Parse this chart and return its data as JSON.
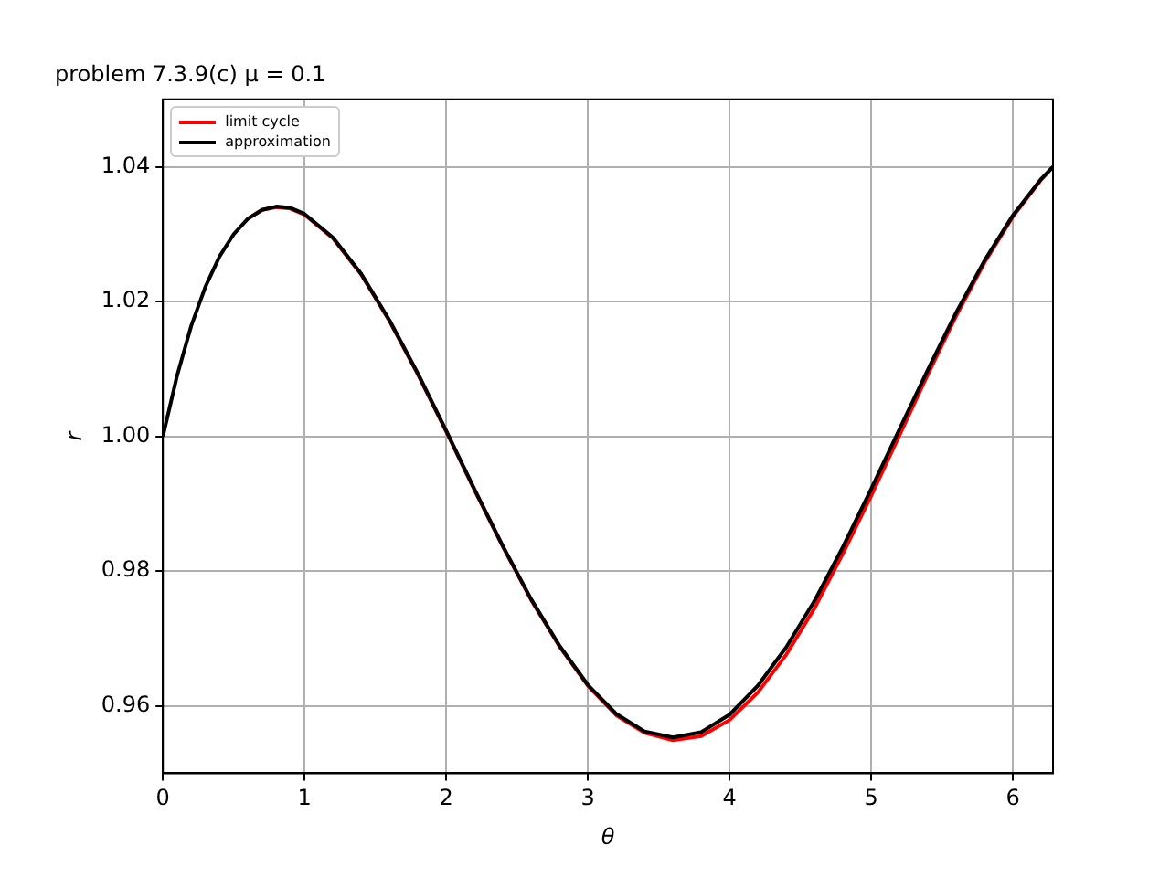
{
  "chart_data": {
    "type": "line",
    "title": "problem 7.3.9(c) μ = 0.1",
    "xlabel": "θ",
    "ylabel": "r",
    "x": [
      0,
      0.1,
      0.2,
      0.3,
      0.4,
      0.5,
      0.6,
      0.7,
      0.8,
      0.9,
      1.0,
      1.2,
      1.4,
      1.6,
      1.8,
      2.0,
      2.2,
      2.4,
      2.6,
      2.8,
      3.0,
      3.2,
      3.4,
      3.6,
      3.8,
      4.0,
      4.2,
      4.4,
      4.6,
      4.8,
      5.0,
      5.2,
      5.4,
      5.6,
      5.8,
      6.0,
      6.2,
      6.283
    ],
    "series": [
      {
        "name": "limit cycle",
        "color": "#ff0000",
        "values": [
          null,
          null,
          null,
          null,
          null,
          null,
          1.0323,
          1.0336,
          1.034,
          1.0338,
          1.0329,
          1.0294,
          1.024,
          1.0171,
          1.0092,
          1.0007,
          0.992,
          0.9836,
          0.9757,
          0.9688,
          0.963,
          0.9586,
          0.956,
          0.9549,
          0.9555,
          0.9579,
          0.962,
          0.9676,
          0.9745,
          0.9826,
          0.9912,
          1.0002,
          1.0092,
          1.0179,
          1.0258,
          1.0326,
          1.0381,
          1.04
        ]
      },
      {
        "name": "approximation",
        "color": "#000000",
        "values": [
          1.0,
          1.009,
          1.0164,
          1.0222,
          1.0267,
          1.03,
          1.0323,
          1.0336,
          1.0341,
          1.0339,
          1.033,
          1.0295,
          1.0241,
          1.0172,
          1.0093,
          1.0008,
          0.9921,
          0.9837,
          0.9758,
          0.9689,
          0.9631,
          0.9588,
          0.9562,
          0.9553,
          0.9561,
          0.9587,
          0.963,
          0.9687,
          0.9756,
          0.9836,
          0.9922,
          1.0011,
          1.0099,
          1.0184,
          1.0261,
          1.0328,
          1.0382,
          1.04
        ]
      }
    ],
    "xlim": [
      0,
      6.283
    ],
    "xticks": [
      0,
      1,
      2,
      3,
      4,
      5,
      6
    ],
    "ylim": [
      0.95,
      1.05
    ],
    "yticks": [
      0.96,
      0.98,
      {
        "value": 1,
        "label": "1.00"
      },
      1.02,
      1.04
    ],
    "grid": true,
    "legend": "top left",
    "marker": "none",
    "line_style": "solid"
  }
}
